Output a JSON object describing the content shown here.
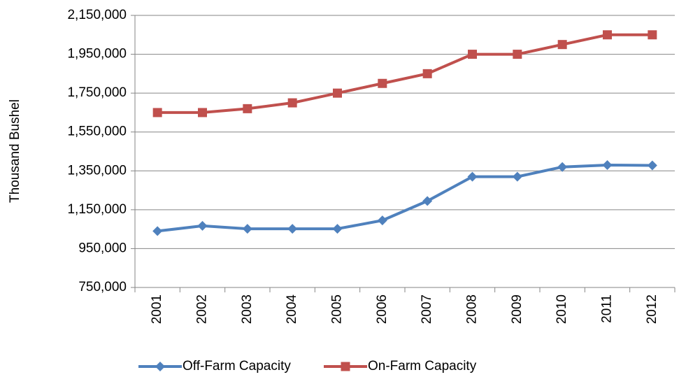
{
  "chart_data": {
    "type": "line",
    "y_label": "Thousand Bushel",
    "categories": [
      "2001",
      "2002",
      "2003",
      "2004",
      "2005",
      "2006",
      "2007",
      "2008",
      "2009",
      "2010",
      "2011",
      "2012"
    ],
    "series": [
      {
        "name": "Off-Farm Capacity",
        "color": "#4f81bd",
        "marker": "diamond",
        "values": [
          1040000,
          1067000,
          1052000,
          1052000,
          1052000,
          1095000,
          1195000,
          1320000,
          1320000,
          1370000,
          1380000,
          1378000
        ]
      },
      {
        "name": "On-Farm Capacity",
        "color": "#c0504d",
        "marker": "square",
        "values": [
          1650000,
          1650000,
          1670000,
          1700000,
          1750000,
          1800000,
          1850000,
          1950000,
          1950000,
          2000000,
          2050000,
          2050000
        ]
      }
    ],
    "ylim": [
      750000,
      2150000
    ],
    "yticks": [
      {
        "value": 750000,
        "label": "750,000"
      },
      {
        "value": 950000,
        "label": "950,000"
      },
      {
        "value": 1150000,
        "label": "1,150,000"
      },
      {
        "value": 1350000,
        "label": "1,350,000"
      },
      {
        "value": 1550000,
        "label": "1,550,000"
      },
      {
        "value": 1750000,
        "label": "1,750,000"
      },
      {
        "value": 1950000,
        "label": "1,950,000"
      },
      {
        "value": 2150000,
        "label": "2,150,000"
      }
    ],
    "grid": true,
    "legend": "bottom"
  }
}
